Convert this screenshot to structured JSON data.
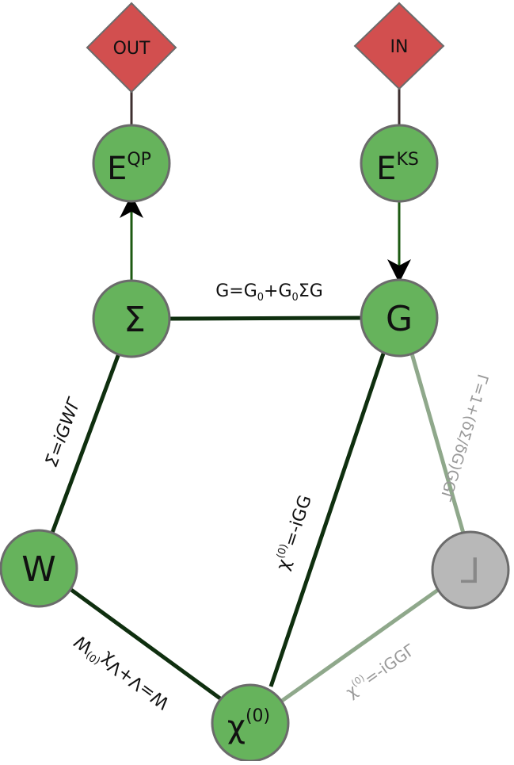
{
  "colors": {
    "node_fill": "#66b35c",
    "node_stroke": "#6b6b6b",
    "gamma_fill": "#b8b8b8",
    "diamond_fill": "#d24f4f",
    "edge_dark": "#0f2f0f",
    "edge_light": "#8fa88b",
    "connector": "#3e2f2f",
    "arrow_green": "#1d5a12",
    "label_dark": "#111111",
    "label_light": "#999999"
  },
  "terminals": {
    "out": "OUT",
    "in": "IN"
  },
  "nodes": {
    "eqp": {
      "base": "E",
      "sup": "QP"
    },
    "eks": {
      "base": "E",
      "sup": "KS"
    },
    "sigma": {
      "base": "Σ"
    },
    "g": {
      "base": "G"
    },
    "w": {
      "base": "W"
    },
    "chi0": {
      "base": "χ",
      "sup": "(0)"
    },
    "gamma": {
      "base": "Γ"
    }
  },
  "edge_labels": {
    "dyson": {
      "p1": "G=G",
      "sub1": "0",
      "p2": "+G",
      "sub2": "0",
      "p3": "ΣG"
    },
    "sigma_eq": "Σ=iGWΓ",
    "chi_gg": {
      "p1": "χ",
      "sup": "(0)",
      "p2": "=-iGG"
    },
    "w_eq": {
      "p1": "W=V+Vχ",
      "sup": "(0)",
      "p2": "W"
    },
    "gamma_eq": "Γ=1+(δΣ/δG)GGΓ",
    "chi_ggg": {
      "p1": "χ",
      "sup": "(0)",
      "p2": "=-iGGΓ"
    }
  }
}
